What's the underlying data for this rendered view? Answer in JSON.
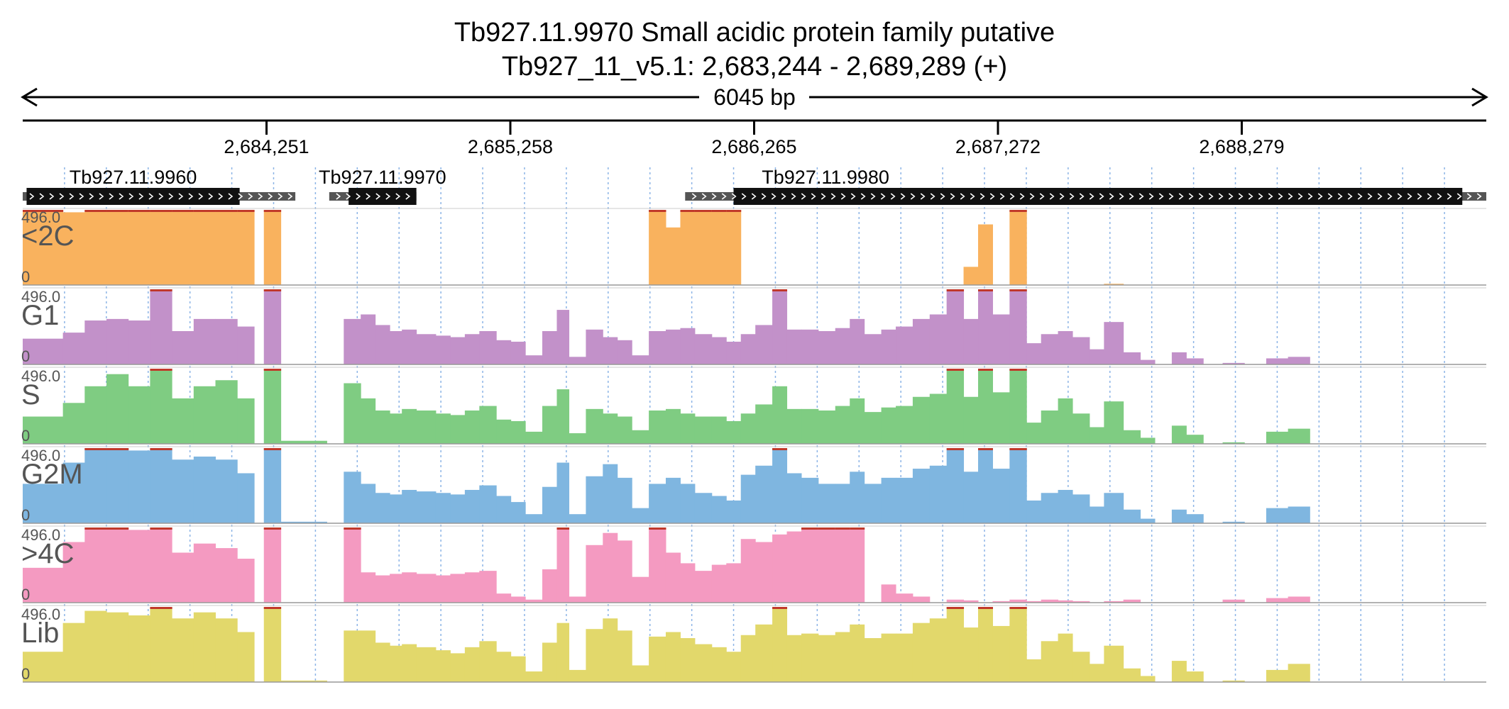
{
  "chart_data": {
    "type": "area",
    "title": "Tb927.11.9970  Small acidic protein family  putative",
    "subtitle": "Tb927_11_v5.1: 2,683,244 - 2,689,289 (+)",
    "span_label": "6045 bp",
    "xlim": [
      2683244,
      2689289
    ],
    "x_ticks": [
      {
        "value": 2684251,
        "label": "2,684,251"
      },
      {
        "value": 2685258,
        "label": "2,685,258"
      },
      {
        "value": 2686265,
        "label": "2,686,265"
      },
      {
        "value": 2687272,
        "label": "2,687,272"
      },
      {
        "value": 2688279,
        "label": "2,688,279"
      }
    ],
    "genes": [
      {
        "name": "Tb927.11.9960",
        "start": 2683244,
        "end": 2684370,
        "cds_start": 2683260,
        "cds_end": 2684140,
        "strand": "+"
      },
      {
        "name": "Tb927.11.9970",
        "start": 2684510,
        "end": 2684870,
        "cds_start": 2684590,
        "cds_end": 2684870,
        "strand": "+"
      },
      {
        "name": "Tb927.11.9980",
        "start": 2685980,
        "end": 2689289,
        "cds_start": 2686180,
        "cds_end": 2689190,
        "strand": "+"
      }
    ],
    "ylim": [
      0,
      496.0
    ],
    "y_max_label": "496.0",
    "y_min_label": "0",
    "bin_edges": [
      2683244,
      2683410,
      2683500,
      2683590,
      2683680,
      2683770,
      2683860,
      2683950,
      2684040,
      2684130,
      2684200,
      2684240,
      2684310,
      2684500,
      2684570,
      2684640,
      2684700,
      2684760,
      2684810,
      2684870,
      2684950,
      2685010,
      2685070,
      2685130,
      2685200,
      2685260,
      2685320,
      2685390,
      2685450,
      2685500,
      2685570,
      2685640,
      2685700,
      2685760,
      2685830,
      2685900,
      2685960,
      2686020,
      2686090,
      2686150,
      2686210,
      2686270,
      2686340,
      2686400,
      2686460,
      2686530,
      2686600,
      2686660,
      2686720,
      2686790,
      2686850,
      2686920,
      2686990,
      2687060,
      2687130,
      2687190,
      2687250,
      2687320,
      2687390,
      2687450,
      2687520,
      2687580,
      2687650,
      2687710,
      2687790,
      2687860,
      2687920,
      2687990,
      2688050,
      2688120,
      2688200,
      2688290,
      2688380,
      2688470,
      2688560,
      2688650,
      2688740,
      2688820,
      2688900
    ],
    "series": [
      {
        "name": "<2C",
        "color": "#f9b25e",
        "values": [
          496,
          480,
          496,
          496,
          496,
          496,
          496,
          496,
          496,
          496,
          0,
          496,
          0,
          0,
          0,
          0,
          0,
          0,
          0,
          0,
          0,
          0,
          0,
          0,
          0,
          0,
          0,
          0,
          0,
          0,
          0,
          0,
          0,
          0,
          496,
          380,
          496,
          496,
          496,
          496,
          0,
          0,
          0,
          0,
          0,
          0,
          0,
          0,
          0,
          0,
          0,
          0,
          0,
          0,
          120,
          400,
          0,
          496,
          0,
          0,
          0,
          0,
          0,
          8,
          0,
          0,
          0,
          0,
          0,
          0,
          0,
          0,
          0,
          0,
          0,
          0,
          0,
          0
        ]
      },
      {
        "name": "G1",
        "color": "#c291c9",
        "values": [
          170,
          210,
          290,
          300,
          290,
          496,
          220,
          300,
          300,
          250,
          0,
          496,
          0,
          0,
          300,
          330,
          260,
          220,
          230,
          200,
          190,
          180,
          200,
          220,
          160,
          150,
          60,
          220,
          360,
          50,
          230,
          180,
          160,
          60,
          220,
          230,
          240,
          200,
          180,
          150,
          200,
          260,
          496,
          230,
          230,
          220,
          240,
          300,
          200,
          230,
          250,
          300,
          330,
          496,
          300,
          496,
          330,
          496,
          140,
          200,
          220,
          180,
          100,
          280,
          80,
          30,
          0,
          80,
          40,
          0,
          10,
          0,
          40,
          50,
          0,
          0,
          0,
          0
        ]
      },
      {
        "name": "S",
        "color": "#7fcc82",
        "values": [
          180,
          270,
          380,
          460,
          380,
          496,
          300,
          380,
          420,
          300,
          0,
          496,
          20,
          0,
          400,
          300,
          220,
          200,
          230,
          220,
          200,
          190,
          220,
          250,
          160,
          150,
          80,
          250,
          360,
          70,
          230,
          200,
          180,
          90,
          220,
          230,
          200,
          180,
          180,
          150,
          200,
          260,
          380,
          230,
          230,
          220,
          250,
          300,
          210,
          240,
          250,
          310,
          330,
          496,
          310,
          496,
          340,
          496,
          140,
          220,
          300,
          200,
          110,
          280,
          90,
          40,
          0,
          120,
          60,
          0,
          10,
          0,
          80,
          100,
          0,
          0,
          0,
          0
        ]
      },
      {
        "name": "G2M",
        "color": "#7fb6e0",
        "values": [
          260,
          400,
          496,
          496,
          480,
          496,
          420,
          440,
          420,
          330,
          0,
          496,
          10,
          0,
          340,
          260,
          200,
          190,
          220,
          210,
          200,
          190,
          220,
          250,
          180,
          140,
          60,
          240,
          400,
          60,
          310,
          390,
          300,
          100,
          260,
          300,
          260,
          200,
          180,
          150,
          320,
          380,
          496,
          330,
          300,
          260,
          260,
          340,
          260,
          300,
          300,
          360,
          380,
          496,
          340,
          496,
          360,
          496,
          150,
          200,
          220,
          190,
          110,
          200,
          90,
          30,
          0,
          90,
          60,
          0,
          10,
          0,
          100,
          110,
          0,
          0,
          0,
          0
        ]
      },
      {
        "name": ">4C",
        "color": "#f49ac1",
        "values": [
          230,
          400,
          496,
          496,
          480,
          496,
          330,
          390,
          360,
          290,
          0,
          496,
          0,
          0,
          496,
          200,
          180,
          190,
          200,
          190,
          180,
          190,
          200,
          210,
          60,
          40,
          20,
          220,
          496,
          40,
          380,
          460,
          410,
          170,
          496,
          330,
          260,
          210,
          250,
          260,
          420,
          400,
          450,
          470,
          496,
          496,
          496,
          496,
          0,
          120,
          60,
          40,
          0,
          20,
          15,
          0,
          10,
          20,
          10,
          20,
          15,
          10,
          0,
          10,
          20,
          0,
          0,
          0,
          0,
          0,
          20,
          0,
          30,
          40,
          0,
          0,
          0,
          0
        ]
      },
      {
        "name": "Lib",
        "color": "#e2d86b",
        "values": [
          200,
          390,
          470,
          460,
          440,
          496,
          420,
          460,
          420,
          330,
          0,
          496,
          10,
          0,
          340,
          340,
          260,
          240,
          250,
          230,
          210,
          190,
          230,
          270,
          200,
          170,
          70,
          260,
          390,
          80,
          350,
          420,
          340,
          110,
          300,
          330,
          290,
          250,
          230,
          200,
          310,
          380,
          496,
          310,
          320,
          310,
          330,
          380,
          290,
          320,
          320,
          390,
          420,
          496,
          360,
          496,
          370,
          496,
          150,
          270,
          320,
          200,
          120,
          240,
          90,
          40,
          0,
          140,
          70,
          0,
          10,
          0,
          80,
          120,
          0,
          0,
          0,
          0
        ]
      }
    ],
    "grid": true,
    "legend": "none"
  }
}
